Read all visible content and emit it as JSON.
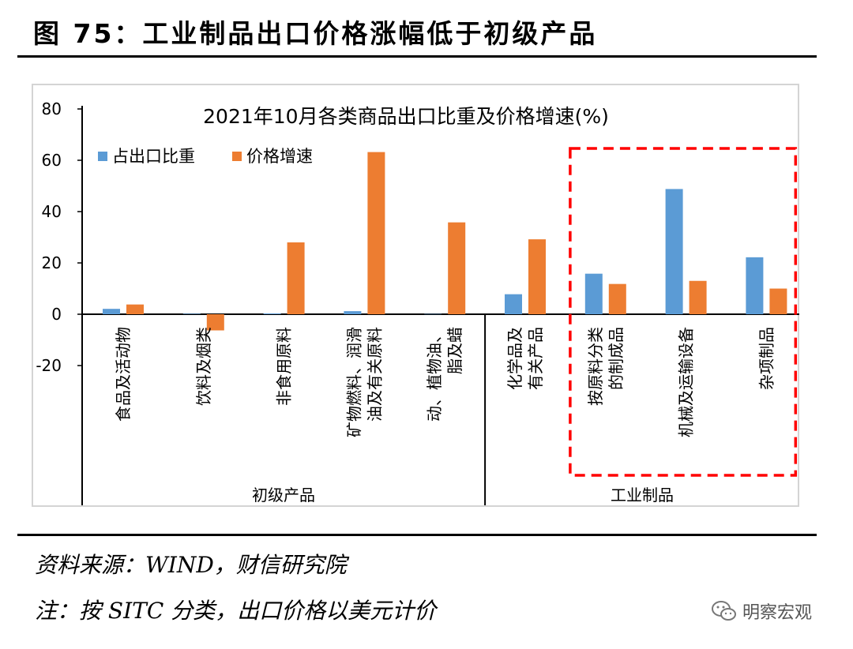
{
  "figure_title": "图 75：工业制品出口价格涨幅低于初级产品",
  "source": "资料来源：WIND，财信研究院",
  "note": "注：按 SITC 分类，出口价格以美元计价",
  "watermark": {
    "text": "明察宏观",
    "icon": "wechat-icon"
  },
  "colors": {
    "share": "#5b9bd5",
    "price": "#ed7d31",
    "highlight": "#ff0000",
    "axis": "#000000"
  },
  "chart_data": {
    "type": "bar",
    "title": "2021年10月各类商品出口比重及价格增速(%)",
    "xlabel": "",
    "ylabel": "",
    "ylim": [
      -20,
      80
    ],
    "yticks": [
      80,
      60,
      40,
      20,
      0,
      -20
    ],
    "grid": false,
    "legend": "top-left",
    "categories": [
      [
        "食品及活动物"
      ],
      [
        "饮料及烟类"
      ],
      [
        "非食用原料"
      ],
      [
        "矿物燃料、润滑",
        "油及有关原料"
      ],
      [
        "动、植物油、",
        "脂及蜡"
      ],
      [
        "化学品及",
        "有关产品"
      ],
      [
        "按原料分类",
        "的制成品"
      ],
      [
        "机械及运输设备"
      ],
      [
        "杂项制品"
      ]
    ],
    "series": [
      {
        "name": "占出口比重",
        "values": [
          2.1,
          0.2,
          0.3,
          1.2,
          0.1,
          7.8,
          15.8,
          48.8,
          22.2
        ]
      },
      {
        "name": "价格增速",
        "values": [
          3.8,
          -6.3,
          28.0,
          63.2,
          35.8,
          29.2,
          11.8,
          13.0,
          10.0
        ]
      }
    ],
    "groups": [
      {
        "label": "初级产品",
        "from": 0,
        "to": 4
      },
      {
        "label": "工业制品",
        "from": 5,
        "to": 8
      }
    ],
    "highlight": {
      "from": 6,
      "to": 8,
      "style": "dashed-box"
    }
  }
}
